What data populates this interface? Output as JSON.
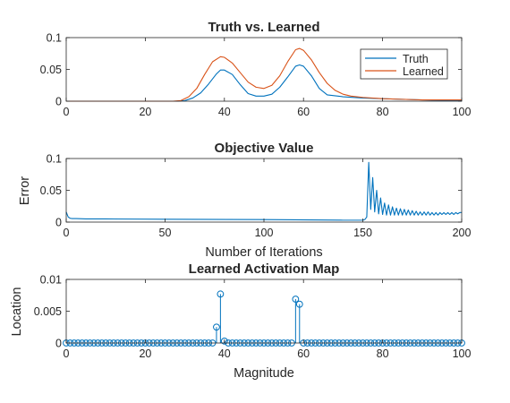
{
  "chart_data": [
    {
      "type": "line",
      "title": "Truth vs. Learned",
      "xlabel": "",
      "ylabel": "",
      "xlim": [
        0,
        100
      ],
      "ylim": [
        0,
        0.1
      ],
      "xticks": [
        0,
        20,
        40,
        60,
        80,
        100
      ],
      "xtick_labels": [
        "0",
        "20",
        "40",
        "60",
        "80",
        "100"
      ],
      "yticks": [
        0,
        0.05,
        0.1
      ],
      "ytick_labels": [
        "0",
        "0.05",
        "0.1"
      ],
      "legend": "top-right",
      "colors": {
        "Truth": "#0072BD",
        "Learned": "#D95319"
      },
      "series": [
        {
          "name": "Truth",
          "x": [
            0,
            10,
            20,
            28,
            30,
            32,
            34,
            36,
            38,
            39,
            40,
            42,
            44,
            46,
            48,
            50,
            52,
            54,
            56,
            58,
            59,
            60,
            62,
            64,
            66,
            70,
            75,
            80,
            85,
            90,
            95,
            100
          ],
          "y": [
            0,
            0,
            0,
            0,
            0.001,
            0.005,
            0.013,
            0.027,
            0.043,
            0.049,
            0.049,
            0.042,
            0.026,
            0.012,
            0.008,
            0.008,
            0.011,
            0.022,
            0.038,
            0.055,
            0.057,
            0.055,
            0.04,
            0.02,
            0.01,
            0.007,
            0.005,
            0.004,
            0.003,
            0.002,
            0.001,
            0.001
          ]
        },
        {
          "name": "Learned",
          "x": [
            0,
            10,
            20,
            27,
            29,
            31,
            33,
            35,
            37,
            39,
            40,
            42,
            44,
            46,
            48,
            50,
            52,
            54,
            56,
            58,
            59,
            60,
            62,
            64,
            66,
            68,
            70,
            72,
            75,
            80,
            85,
            90,
            95,
            100
          ],
          "y": [
            0,
            0,
            0,
            0,
            0.001,
            0.007,
            0.02,
            0.042,
            0.062,
            0.07,
            0.069,
            0.06,
            0.045,
            0.03,
            0.022,
            0.02,
            0.025,
            0.04,
            0.062,
            0.081,
            0.083,
            0.08,
            0.065,
            0.045,
            0.028,
            0.017,
            0.011,
            0.008,
            0.006,
            0.004,
            0.003,
            0.002,
            0.002,
            0.002
          ]
        }
      ]
    },
    {
      "type": "line",
      "title": "Objective Value",
      "xlabel": "Number of Iterations",
      "ylabel": "Error",
      "xlim": [
        0,
        200
      ],
      "ylim": [
        0,
        0.1
      ],
      "xticks": [
        0,
        50,
        100,
        150,
        200
      ],
      "xtick_labels": [
        "0",
        "50",
        "100",
        "150",
        "200"
      ],
      "yticks": [
        0,
        0.05,
        0.1
      ],
      "ytick_labels": [
        "0",
        "0.05",
        "0.1"
      ],
      "colors": {
        "Error": "#0072BD"
      },
      "series": [
        {
          "x": [
            0,
            1,
            2,
            3,
            5,
            10,
            20,
            50,
            100,
            140,
            150,
            151,
            152,
            153,
            154,
            155,
            156,
            157,
            158,
            159,
            160,
            161,
            162,
            163,
            164,
            165,
            166,
            167,
            168,
            169,
            170,
            171,
            172,
            173,
            174,
            175,
            176,
            177,
            178,
            179,
            180,
            181,
            182,
            183,
            184,
            185,
            186,
            187,
            188,
            189,
            190,
            191,
            192,
            193,
            194,
            195,
            196,
            197,
            198,
            199,
            200
          ],
          "y": [
            0.016,
            0.008,
            0.006,
            0.0055,
            0.0055,
            0.005,
            0.005,
            0.0045,
            0.004,
            0.003,
            0.003,
            0.004,
            0.008,
            0.094,
            0.02,
            0.07,
            0.016,
            0.05,
            0.013,
            0.038,
            0.012,
            0.03,
            0.011,
            0.027,
            0.011,
            0.024,
            0.011,
            0.022,
            0.011,
            0.021,
            0.011,
            0.02,
            0.011,
            0.019,
            0.011,
            0.018,
            0.011,
            0.017,
            0.011,
            0.016,
            0.011,
            0.016,
            0.011,
            0.016,
            0.011,
            0.015,
            0.011,
            0.015,
            0.011,
            0.015,
            0.012,
            0.015,
            0.012,
            0.015,
            0.012,
            0.015,
            0.012,
            0.015,
            0.013,
            0.015,
            0.015
          ]
        }
      ]
    },
    {
      "type": "scatter",
      "subtype": "stem",
      "title": "Learned Activation Map",
      "xlabel": "Magnitude",
      "ylabel": "Location",
      "xlim": [
        0,
        100
      ],
      "ylim": [
        0,
        0.01
      ],
      "xticks": [
        0,
        20,
        40,
        60,
        80,
        100
      ],
      "xtick_labels": [
        "0",
        "20",
        "40",
        "60",
        "80",
        "100"
      ],
      "yticks": [
        0,
        0.005,
        0.01
      ],
      "ytick_labels": [
        "0",
        "0.005",
        "0.01"
      ],
      "colors": {
        "stem": "#0072BD"
      },
      "series": [
        {
          "x": [
            0,
            1,
            2,
            3,
            4,
            5,
            6,
            7,
            8,
            9,
            10,
            11,
            12,
            13,
            14,
            15,
            16,
            17,
            18,
            19,
            20,
            21,
            22,
            23,
            24,
            25,
            26,
            27,
            28,
            29,
            30,
            31,
            32,
            33,
            34,
            35,
            36,
            37,
            38,
            39,
            40,
            41,
            42,
            43,
            44,
            45,
            46,
            47,
            48,
            49,
            50,
            51,
            52,
            53,
            54,
            55,
            56,
            57,
            58,
            59,
            60,
            61,
            62,
            63,
            64,
            65,
            66,
            67,
            68,
            69,
            70,
            71,
            72,
            73,
            74,
            75,
            76,
            77,
            78,
            79,
            80,
            81,
            82,
            83,
            84,
            85,
            86,
            87,
            88,
            89,
            90,
            91,
            92,
            93,
            94,
            95,
            96,
            97,
            98,
            99,
            100
          ],
          "y": [
            0,
            0,
            0,
            0,
            0,
            0,
            0,
            0,
            0,
            0,
            0,
            0,
            0,
            0,
            0,
            0,
            0,
            0,
            0,
            0,
            0,
            0,
            0,
            0,
            0,
            0,
            0,
            0,
            0,
            0,
            0,
            0,
            0,
            0,
            0,
            0,
            0,
            0,
            0.0025,
            0.0077,
            0.0003,
            0,
            0,
            0,
            0,
            0,
            0,
            0,
            0,
            0,
            0,
            0,
            0,
            0,
            0,
            0,
            0,
            0,
            0.0069,
            0.0061,
            0,
            0,
            0,
            0,
            0,
            0,
            0,
            0,
            0,
            0,
            0,
            0,
            0,
            0,
            0,
            0,
            0,
            0,
            0,
            0,
            0,
            0,
            0,
            0,
            0,
            0,
            0,
            0,
            0,
            0,
            0,
            0,
            0,
            0,
            0,
            0,
            0,
            0,
            0,
            0,
            0
          ]
        }
      ]
    }
  ]
}
